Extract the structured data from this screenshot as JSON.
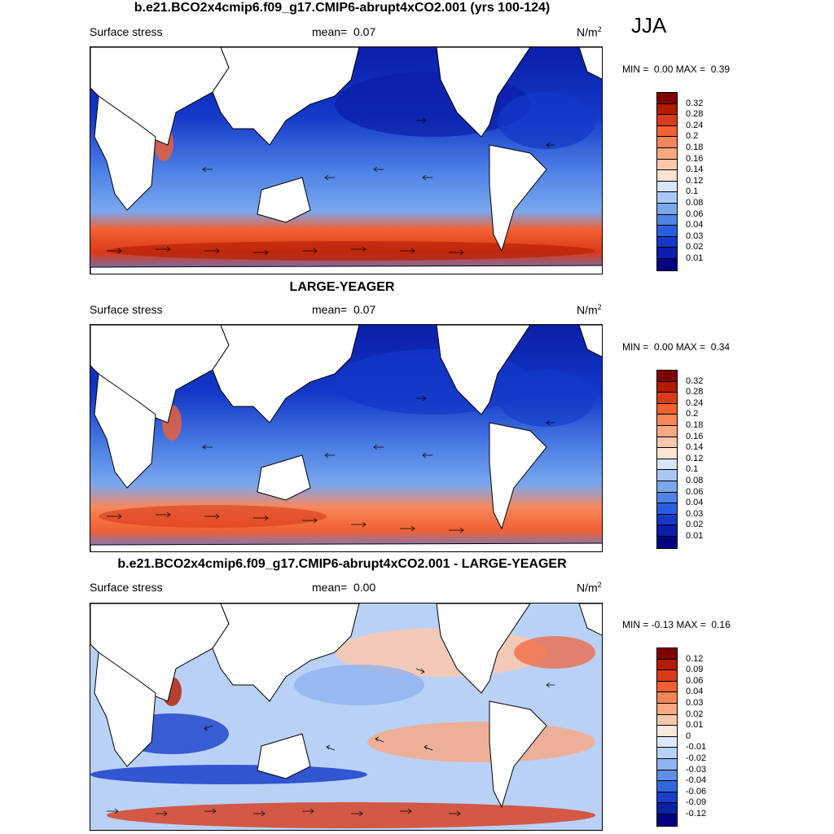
{
  "season": "JJA",
  "panels": [
    {
      "title": "b.e21.BCO2x4cmip6.f09_g17.CMIP6-abrupt4xCO2.001 (yrs 100-124)",
      "variable": "Surface stress",
      "mean_label": "mean=",
      "mean_value": "0.07",
      "unit": "N/m",
      "unit_exp": "2",
      "min_label": "MIN =",
      "min_value": "0.00",
      "max_label": "MAX =",
      "max_value": "0.39",
      "colorbar": [
        "0.32",
        "0.28",
        "0.24",
        "0.2",
        "0.18",
        "0.16",
        "0.14",
        "0.12",
        "0.1",
        "0.08",
        "0.06",
        "0.04",
        "0.03",
        "0.02",
        "0.01"
      ],
      "colors": [
        "#7f0000",
        "#b31b00",
        "#d93a1a",
        "#f26033",
        "#f7875a",
        "#f9a882",
        "#fcc8ad",
        "#fde3d2",
        "#d6e6fb",
        "#a9c8f5",
        "#7aa7ee",
        "#4f83e6",
        "#2a5ee0",
        "#1438c8",
        "#0a1ea8",
        "#000080"
      ]
    },
    {
      "title": "LARGE-YEAGER",
      "variable": "Surface stress",
      "mean_label": "mean=",
      "mean_value": "0.07",
      "unit": "N/m",
      "unit_exp": "2",
      "min_label": "MIN =",
      "min_value": "0.00",
      "max_label": "MAX =",
      "max_value": "0.34",
      "colorbar": [
        "0.32",
        "0.28",
        "0.24",
        "0.2",
        "0.18",
        "0.16",
        "0.14",
        "0.12",
        "0.1",
        "0.08",
        "0.06",
        "0.04",
        "0.03",
        "0.02",
        "0.01"
      ],
      "colors": [
        "#7f0000",
        "#b31b00",
        "#d93a1a",
        "#f26033",
        "#f7875a",
        "#f9a882",
        "#fcc8ad",
        "#fde3d2",
        "#d6e6fb",
        "#a9c8f5",
        "#7aa7ee",
        "#4f83e6",
        "#2a5ee0",
        "#1438c8",
        "#0a1ea8",
        "#000080"
      ]
    },
    {
      "title": "b.e21.BCO2x4cmip6.f09_g17.CMIP6-abrupt4xCO2.001 - LARGE-YEAGER",
      "variable": "Surface stress",
      "mean_label": "mean=",
      "mean_value": "0.00",
      "unit": "N/m",
      "unit_exp": "2",
      "min_label": "MIN =",
      "min_value": "-0.13",
      "max_label": "MAX =",
      "max_value": "0.16",
      "colorbar": [
        "0.12",
        "0.09",
        "0.06",
        "0.04",
        "0.03",
        "0.02",
        "0.01",
        "0",
        "-0.01",
        "-0.02",
        "-0.03",
        "-0.04",
        "-0.06",
        "-0.09",
        "-0.12"
      ],
      "colors": [
        "#7f0000",
        "#b31b00",
        "#d93a1a",
        "#f26033",
        "#f7875a",
        "#f9a882",
        "#fcc8ad",
        "#fde8dc",
        "#dde9fb",
        "#b9d1f6",
        "#8fb3f0",
        "#5f8ee8",
        "#3466de",
        "#1a3fc9",
        "#0a22a6",
        "#000080"
      ]
    }
  ]
}
